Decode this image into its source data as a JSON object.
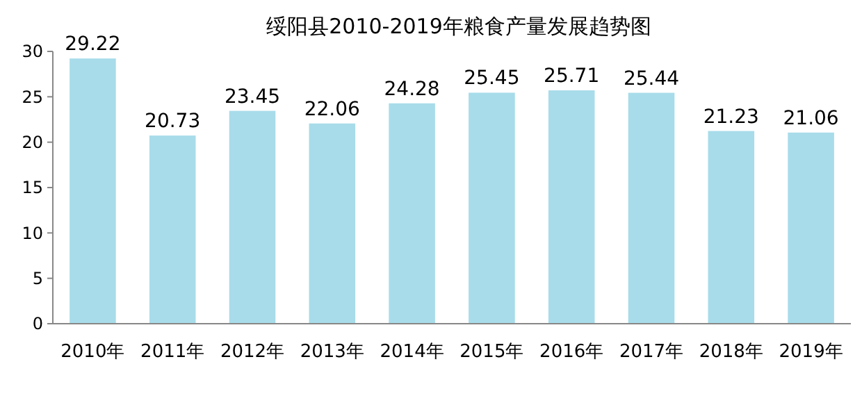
{
  "chart_data": {
    "type": "bar",
    "title": "绥阳县2010-2019年粮食产量发展趋势图",
    "categories": [
      "2010年",
      "2011年",
      "2012年",
      "2013年",
      "2014年",
      "2015年",
      "2016年",
      "2017年",
      "2018年",
      "2019年"
    ],
    "values": [
      29.22,
      20.73,
      23.45,
      22.06,
      24.28,
      25.45,
      25.71,
      25.44,
      21.23,
      21.06
    ],
    "color": "#a8dcea",
    "ylim": [
      0,
      30
    ],
    "yticks": [
      0,
      5,
      10,
      15,
      20,
      25,
      30
    ],
    "data_labels": true,
    "grid": false
  }
}
